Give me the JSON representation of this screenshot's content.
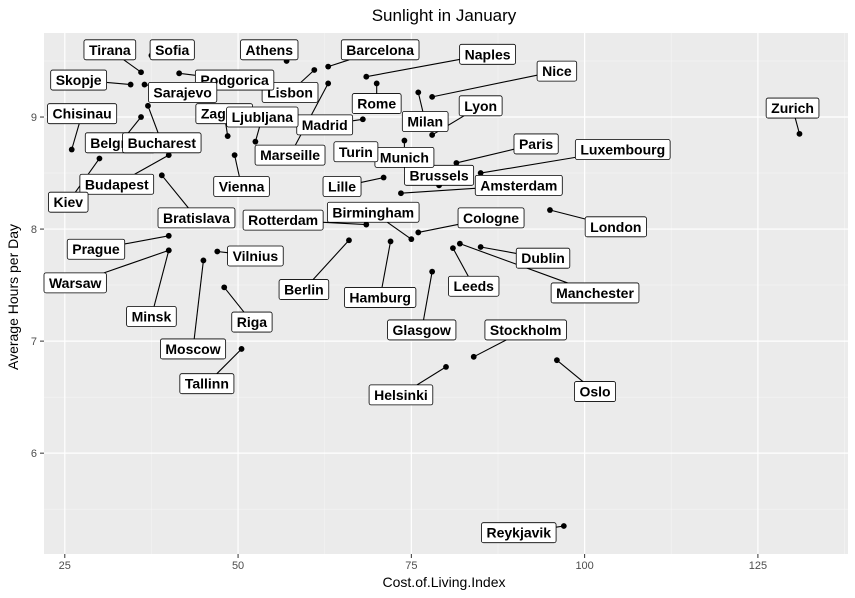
{
  "chart_data": {
    "type": "scatter",
    "title": "Sunlight in January",
    "xlabel": "Cost.of.Living.Index",
    "ylabel": "Average Hours per Day",
    "xlim": [
      22,
      138
    ],
    "ylim": [
      5.1,
      9.75
    ],
    "x_ticks": [
      25,
      50,
      75,
      100,
      125
    ],
    "y_ticks": [
      6,
      7,
      8,
      9
    ],
    "x_tick_labels": [
      "25",
      "50",
      "75",
      "100",
      "125"
    ],
    "y_tick_labels": [
      "6",
      "7",
      "8",
      "9"
    ],
    "grid": true,
    "colors": {
      "panel": "#ebebeb",
      "grid_major": "#ffffff",
      "grid_minor": "#f5f5f5",
      "point": "#000000",
      "label_bg": "#ffffff"
    },
    "points": [
      {
        "name": "Zurich",
        "x": 131.0,
        "y": 8.85,
        "lx": 130.0,
        "ly": 9.08
      },
      {
        "name": "Reykjavik",
        "x": 97.0,
        "y": 5.35,
        "lx": 90.5,
        "ly": 5.29
      },
      {
        "name": "Oslo",
        "x": 96.0,
        "y": 6.83,
        "lx": 101.5,
        "ly": 6.55
      },
      {
        "name": "Stockholm",
        "x": 84.0,
        "y": 6.86,
        "lx": 91.5,
        "ly": 7.1
      },
      {
        "name": "Helsinki",
        "x": 80.0,
        "y": 6.77,
        "lx": 73.5,
        "ly": 6.52
      },
      {
        "name": "London",
        "x": 95.0,
        "y": 8.17,
        "lx": 104.5,
        "ly": 8.02
      },
      {
        "name": "Dublin",
        "x": 85.0,
        "y": 7.84,
        "lx": 94.0,
        "ly": 7.74
      },
      {
        "name": "Manchester",
        "x": 82.0,
        "y": 7.87,
        "lx": 101.5,
        "ly": 7.43
      },
      {
        "name": "Leeds",
        "x": 81.0,
        "y": 7.83,
        "lx": 84.0,
        "ly": 7.49
      },
      {
        "name": "Glasgow",
        "x": 78.0,
        "y": 7.62,
        "lx": 76.5,
        "ly": 7.1
      },
      {
        "name": "Hamburg",
        "x": 72.0,
        "y": 7.89,
        "lx": 70.5,
        "ly": 7.39
      },
      {
        "name": "Berlin",
        "x": 66.0,
        "y": 7.9,
        "lx": 59.5,
        "ly": 7.46
      },
      {
        "name": "Birmingham",
        "x": 75.0,
        "y": 7.91,
        "lx": 69.5,
        "ly": 8.15
      },
      {
        "name": "Rotterdam",
        "x": 68.5,
        "y": 8.04,
        "lx": 56.5,
        "ly": 8.08
      },
      {
        "name": "Cologne",
        "x": 76.0,
        "y": 7.97,
        "lx": 86.5,
        "ly": 8.1
      },
      {
        "name": "Amsterdam",
        "x": 73.5,
        "y": 8.32,
        "lx": 90.5,
        "ly": 8.39
      },
      {
        "name": "Brussels",
        "x": 79.0,
        "y": 8.39,
        "lx": 79.0,
        "ly": 8.48
      },
      {
        "name": "Luxembourg",
        "x": 85.0,
        "y": 8.5,
        "lx": 105.5,
        "ly": 8.71
      },
      {
        "name": "Paris",
        "x": 81.5,
        "y": 8.59,
        "lx": 93.0,
        "ly": 8.76
      },
      {
        "name": "Munich",
        "x": 74.0,
        "y": 8.79,
        "lx": 74.0,
        "ly": 8.64
      },
      {
        "name": "Lille",
        "x": 71.0,
        "y": 8.46,
        "lx": 65.0,
        "ly": 8.38
      },
      {
        "name": "Turin",
        "x": 68.0,
        "y": 8.63,
        "lx": 67.0,
        "ly": 8.69
      },
      {
        "name": "Lyon",
        "x": 78.0,
        "y": 8.84,
        "lx": 85.0,
        "ly": 9.1
      },
      {
        "name": "Milan",
        "x": 76.0,
        "y": 9.22,
        "lx": 77.0,
        "ly": 8.96
      },
      {
        "name": "Rome",
        "x": 70.0,
        "y": 9.3,
        "lx": 70.0,
        "ly": 9.12
      },
      {
        "name": "Madrid",
        "x": 68.0,
        "y": 8.98,
        "lx": 62.5,
        "ly": 8.93
      },
      {
        "name": "Naples",
        "x": 68.5,
        "y": 9.36,
        "lx": 86.0,
        "ly": 9.56
      },
      {
        "name": "Nice",
        "x": 78.0,
        "y": 9.18,
        "lx": 96.0,
        "ly": 9.41
      },
      {
        "name": "Barcelona",
        "x": 63.0,
        "y": 9.45,
        "lx": 70.5,
        "ly": 9.6
      },
      {
        "name": "Marseille",
        "x": 63.0,
        "y": 9.3,
        "lx": 57.5,
        "ly": 8.66
      },
      {
        "name": "Lisbon",
        "x": 61.0,
        "y": 9.42,
        "lx": 57.5,
        "ly": 9.22
      },
      {
        "name": "Athens",
        "x": 57.0,
        "y": 9.5,
        "lx": 54.5,
        "ly": 9.6
      },
      {
        "name": "Podgorica",
        "x": 41.5,
        "y": 9.39,
        "lx": 49.5,
        "ly": 9.33
      },
      {
        "name": "Sofia",
        "x": 37.5,
        "y": 9.55,
        "lx": 40.5,
        "ly": 9.6
      },
      {
        "name": "Tirana",
        "x": 36.0,
        "y": 9.4,
        "lx": 31.5,
        "ly": 9.6
      },
      {
        "name": "Skopje",
        "x": 34.5,
        "y": 9.29,
        "lx": 27.0,
        "ly": 9.33
      },
      {
        "name": "Sarajevo",
        "x": 36.5,
        "y": 9.29,
        "lx": 42.0,
        "ly": 9.22
      },
      {
        "name": "Zagreb",
        "x": 48.5,
        "y": 8.83,
        "lx": 48.0,
        "ly": 9.03
      },
      {
        "name": "Ljubljana",
        "x": 52.5,
        "y": 8.78,
        "lx": 53.5,
        "ly": 9.0
      },
      {
        "name": "Chisinau",
        "x": 26.0,
        "y": 8.71,
        "lx": 27.5,
        "ly": 9.03
      },
      {
        "name": "Belgrade",
        "x": 36.0,
        "y": 9.0,
        "lx": 33.0,
        "ly": 8.77
      },
      {
        "name": "Bucharest",
        "x": 37.0,
        "y": 9.1,
        "lx": 39.0,
        "ly": 8.77
      },
      {
        "name": "Budapest",
        "x": 40.0,
        "y": 8.66,
        "lx": 32.5,
        "ly": 8.4
      },
      {
        "name": "Kiev",
        "x": 30.0,
        "y": 8.63,
        "lx": 25.5,
        "ly": 8.24
      },
      {
        "name": "Vienna",
        "x": 49.5,
        "y": 8.66,
        "lx": 50.5,
        "ly": 8.38
      },
      {
        "name": "Bratislava",
        "x": 39.0,
        "y": 8.48,
        "lx": 44.0,
        "ly": 8.1
      },
      {
        "name": "Prague",
        "x": 40.0,
        "y": 7.94,
        "lx": 29.5,
        "ly": 7.82
      },
      {
        "name": "Warsaw",
        "x": 40.0,
        "y": 7.81,
        "lx": 26.5,
        "ly": 7.52
      },
      {
        "name": "Minsk",
        "x": 40.0,
        "y": 7.81,
        "lx": 37.5,
        "ly": 7.22
      },
      {
        "name": "Vilnius",
        "x": 47.0,
        "y": 7.8,
        "lx": 52.5,
        "ly": 7.76
      },
      {
        "name": "Moscow",
        "x": 45.0,
        "y": 7.72,
        "lx": 43.5,
        "ly": 6.93
      },
      {
        "name": "Riga",
        "x": 48.0,
        "y": 7.48,
        "lx": 52.0,
        "ly": 7.17
      },
      {
        "name": "Tallinn",
        "x": 50.5,
        "y": 6.93,
        "lx": 45.5,
        "ly": 6.62
      }
    ]
  }
}
